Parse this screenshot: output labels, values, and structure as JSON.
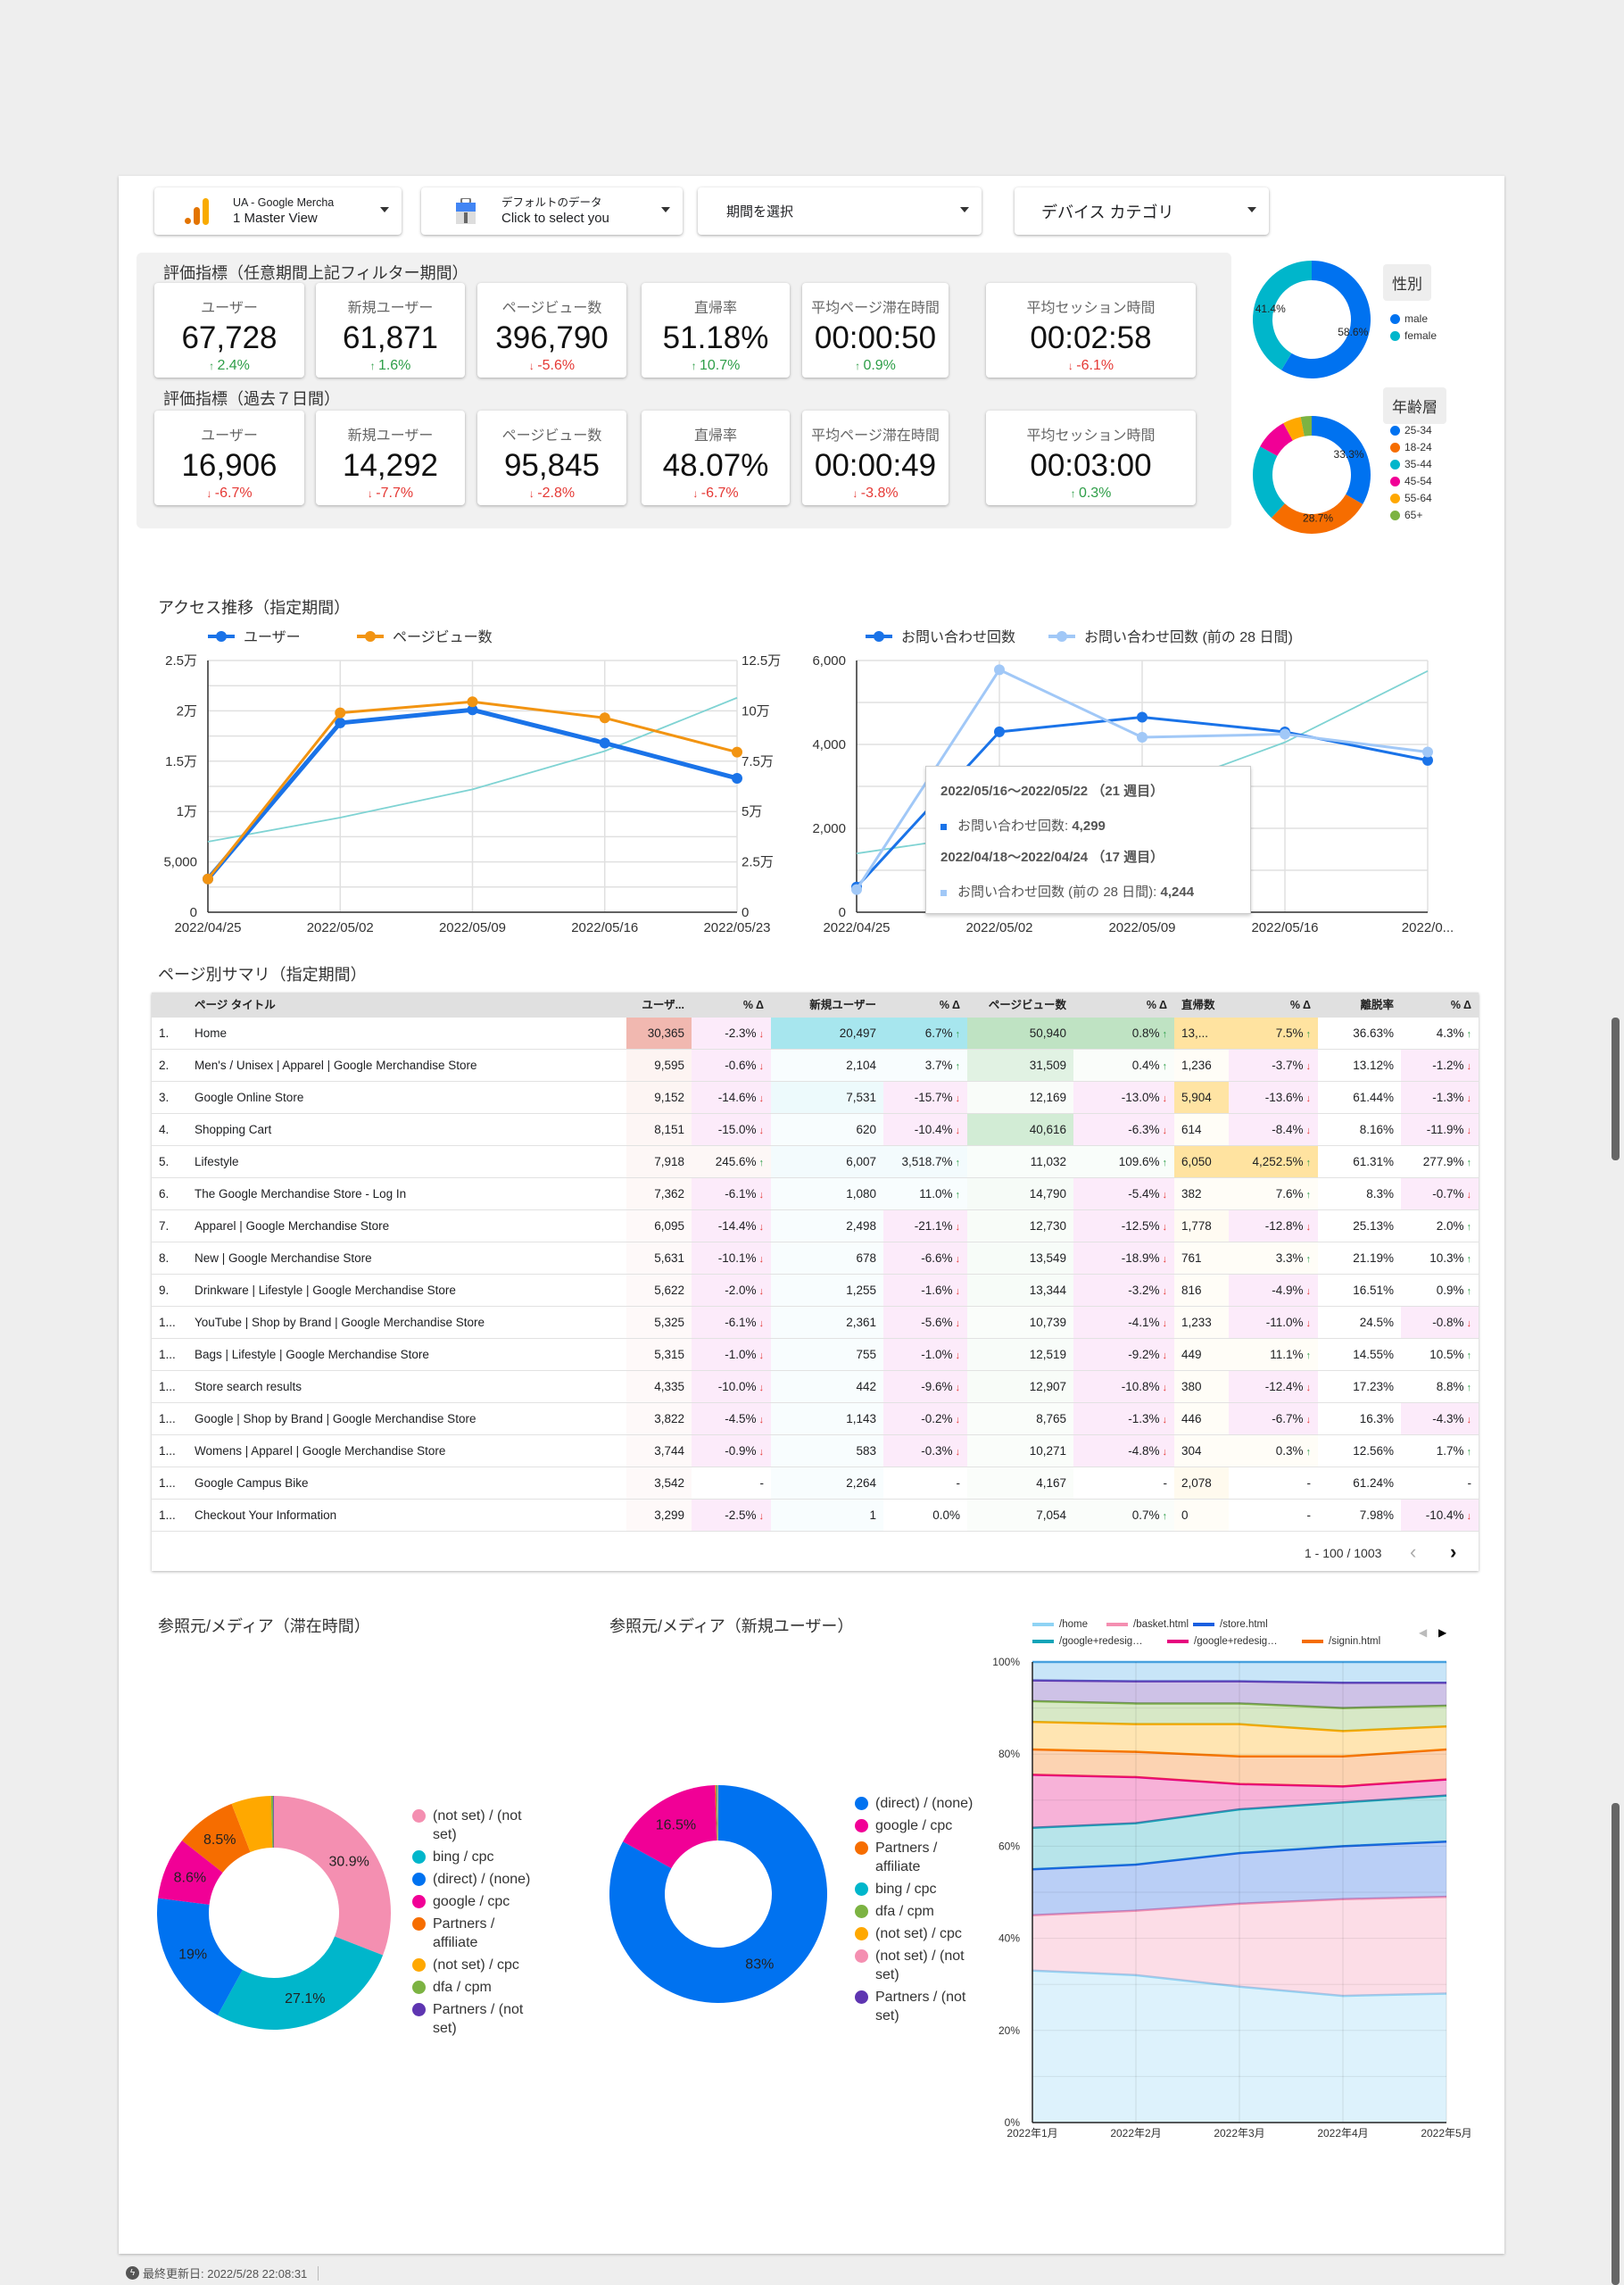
{
  "filters": {
    "account": {
      "line1": "UA - Google Mercha",
      "line2": "1 Master View"
    },
    "datasource": {
      "line1": "デフォルトのデータ",
      "line2": "Click to select you"
    },
    "period": {
      "label": "期間を選択"
    },
    "device": {
      "label": "デバイス カテゴリ"
    }
  },
  "metrics": {
    "section1": {
      "heading": "評価指標（任意期間上記フィルター期間）",
      "cards": [
        {
          "label": "ユーザー",
          "value": "67,728",
          "delta": "2.4%",
          "dir": "up"
        },
        {
          "label": "新規ユーザー",
          "value": "61,871",
          "delta": "1.6%",
          "dir": "up"
        },
        {
          "label": "ページビュー数",
          "value": "396,790",
          "delta": "-5.6%",
          "dir": "down"
        },
        {
          "label": "直帰率",
          "value": "51.18%",
          "delta": "10.7%",
          "dir": "up"
        },
        {
          "label": "平均ページ滞在時間",
          "value": "00:00:50",
          "delta": "0.9%",
          "dir": "up"
        },
        {
          "label": "平均セッション時間",
          "value": "00:02:58",
          "delta": "-6.1%",
          "dir": "down"
        }
      ]
    },
    "section2": {
      "heading": "評価指標（過去７日間）",
      "cards": [
        {
          "label": "ユーザー",
          "value": "16,906",
          "delta": "-6.7%",
          "dir": "down"
        },
        {
          "label": "新規ユーザー",
          "value": "14,292",
          "delta": "-7.7%",
          "dir": "down"
        },
        {
          "label": "ページビュー数",
          "value": "95,845",
          "delta": "-2.8%",
          "dir": "down"
        },
        {
          "label": "直帰率",
          "value": "48.07%",
          "delta": "-6.7%",
          "dir": "down"
        },
        {
          "label": "平均ページ滞在時間",
          "value": "00:00:49",
          "delta": "-3.8%",
          "dir": "down"
        },
        {
          "label": "平均セッション時間",
          "value": "00:03:00",
          "delta": "0.3%",
          "dir": "up"
        }
      ]
    }
  },
  "chart_data": [
    {
      "type": "pie",
      "title": "性別",
      "donut": true,
      "slices": [
        {
          "label": "male",
          "value": 58.6,
          "color": "#0072f0"
        },
        {
          "label": "female",
          "value": 41.4,
          "color": "#00b6cb"
        }
      ],
      "data_labels": [
        "58.6%",
        "41.4%"
      ]
    },
    {
      "type": "pie",
      "title": "年齢層",
      "donut": true,
      "slices": [
        {
          "label": "25-34",
          "value": 33.3,
          "color": "#0072f0"
        },
        {
          "label": "18-24",
          "value": 28.7,
          "color": "#f66d00"
        },
        {
          "label": "35-44",
          "value": 21,
          "color": "#00b6cb"
        },
        {
          "label": "45-54",
          "value": 9,
          "color": "#f10096"
        },
        {
          "label": "55-64",
          "value": 5,
          "color": "#ffa800"
        },
        {
          "label": "65+",
          "value": 3,
          "color": "#7cb342"
        }
      ],
      "data_labels": [
        "33.3%",
        "28.7%",
        "",
        "",
        "",
        ""
      ]
    },
    {
      "type": "line",
      "title": "アクセス推移（指定期間）",
      "categories": [
        "2022/04/25",
        "2022/05/02",
        "2022/05/09",
        "2022/05/16",
        "2022/05/23"
      ],
      "series": [
        {
          "name": "ユーザー",
          "axis": "left",
          "color": "#1a73e8",
          "values": [
            3300,
            18800,
            20100,
            16800,
            13300
          ]
        },
        {
          "name": "ページビュー数",
          "axis": "right",
          "color": "#f29412",
          "values": [
            16500,
            99000,
            104500,
            96500,
            79500
          ]
        }
      ],
      "trendline": {
        "axis": "right",
        "color": "#7fd3d3",
        "values": [
          35000,
          47000,
          61000,
          80000,
          106500
        ]
      },
      "ylim_left": [
        0,
        25000
      ],
      "ylim_right": [
        0,
        125000
      ],
      "yticks_left": [
        "0",
        "5,000",
        "1万",
        "1.5万",
        "2万",
        "2.5万"
      ],
      "yticks_right": [
        "0",
        "2.5万",
        "5万",
        "7.5万",
        "10万",
        "12.5万"
      ],
      "grid": true,
      "legend": "top-left"
    },
    {
      "type": "line",
      "categories": [
        "2022/04/25",
        "2022/05/02",
        "2022/05/09",
        "2022/05/16",
        "2022/0..."
      ],
      "series": [
        {
          "name": "お問い合わせ回数",
          "color": "#1a73e8",
          "values": [
            600,
            4300,
            4650,
            4299,
            3620
          ]
        },
        {
          "name": "お問い合わせ回数 (前の 28 日間)",
          "color": "#a1c8f7",
          "values": [
            540,
            5780,
            4170,
            4244,
            3820
          ]
        }
      ],
      "trendline": {
        "color": "#7fd3d3",
        "values": [
          1400,
          1900,
          2800,
          4050,
          5750
        ]
      },
      "ylim": [
        0,
        6000
      ],
      "yticks": [
        "0",
        "2,000",
        "4,000",
        "6,000"
      ],
      "grid": true,
      "legend": "top-left",
      "tooltip": {
        "range1": "2022/05/16〜2022/05/22 （21 週目）",
        "item1_label": "お問い合わせ回数: ",
        "item1_value": "4,299",
        "range2": "2022/04/18〜2022/04/24 （17 週目）",
        "item2_label": "お問い合わせ回数 (前の 28 日間): ",
        "item2_value": "4,244"
      }
    },
    {
      "type": "pie",
      "title": "参照元/メディア（滞在時間）",
      "donut": true,
      "slices": [
        {
          "label": "(not set) / (not set)",
          "value": 30.9,
          "color": "#f48fb1"
        },
        {
          "label": "bing / cpc",
          "value": 27.1,
          "color": "#00b6cb"
        },
        {
          "label": "(direct) / (none)",
          "value": 19,
          "color": "#0072f0"
        },
        {
          "label": "google / cpc",
          "value": 8.6,
          "color": "#f10096"
        },
        {
          "label": "Partners / affiliate",
          "value": 8.5,
          "color": "#f66d00"
        },
        {
          "label": "(not set) / cpc",
          "value": 5.5,
          "color": "#ffa800"
        },
        {
          "label": "dfa / cpm",
          "value": 0.3,
          "color": "#7cb342"
        },
        {
          "label": "Partners / (not set)",
          "value": 0.1,
          "color": "#5e35b1"
        }
      ],
      "data_labels": [
        "30.9%",
        "27.1%",
        "19%",
        "8.6%",
        "8.5%",
        "",
        "",
        ""
      ]
    },
    {
      "type": "pie",
      "title": "参照元/メディア（新規ユーザー）",
      "donut": true,
      "slices": [
        {
          "label": "(direct) / (none)",
          "value": 83,
          "color": "#0072f0"
        },
        {
          "label": "google / cpc",
          "value": 16.5,
          "color": "#f10096"
        },
        {
          "label": "Partners / affiliate",
          "value": 0.2,
          "color": "#f66d00"
        },
        {
          "label": "bing / cpc",
          "value": 0.1,
          "color": "#00b6cb"
        },
        {
          "label": "dfa / cpm",
          "value": 0.1,
          "color": "#7cb342"
        },
        {
          "label": "(not set) / cpc",
          "value": 0.05,
          "color": "#ffa800"
        },
        {
          "label": "(not set) / (not set)",
          "value": 0.03,
          "color": "#f48fb1"
        },
        {
          "label": "Partners / (not set)",
          "value": 0.02,
          "color": "#5e35b1"
        }
      ],
      "data_labels": [
        "83%",
        "16.5%",
        "",
        "",
        "",
        "",
        "",
        ""
      ]
    },
    {
      "type": "area",
      "stacked": "percent",
      "categories": [
        "2022年1月",
        "2022年2月",
        "2022年3月",
        "2022年4月",
        "2022年5月"
      ],
      "yticks": [
        "0%",
        "20%",
        "40%",
        "60%",
        "80%",
        "100%"
      ],
      "series": [
        {
          "name": "/home",
          "color": "#8fd3f4",
          "values": [
            33,
            32,
            29.5,
            27.5,
            28
          ]
        },
        {
          "name": "/basket.html",
          "color": "#f48fb1",
          "values": [
            12,
            14,
            18,
            21,
            21
          ]
        },
        {
          "name": "/store.html",
          "color": "#1a5fe0",
          "values": [
            10,
            10,
            11,
            11.5,
            12
          ]
        },
        {
          "name": "/google+redesig…",
          "color": "#12a4b8",
          "values": [
            9,
            9,
            9.5,
            9.5,
            10
          ]
        },
        {
          "name": "/google+redesig…",
          "color": "#e6007e",
          "values": [
            11.5,
            10,
            5.5,
            3.5,
            3.5
          ]
        },
        {
          "name": "/signin.html",
          "color": "#f46d00",
          "values": [
            5.5,
            5.5,
            6,
            6.5,
            6.5
          ]
        },
        {
          "color": "#ffa800",
          "values": [
            6,
            6,
            7,
            5.5,
            5
          ]
        },
        {
          "color": "#7cb342",
          "values": [
            4.5,
            4.5,
            4.5,
            5,
            4.5
          ]
        },
        {
          "color": "#5e35b1",
          "values": [
            4.5,
            4.8,
            4.8,
            5.5,
            5
          ]
        },
        {
          "color": "#4aa8e8",
          "values": [
            4,
            4.2,
            4.2,
            4.5,
            4.5
          ]
        }
      ],
      "legend": "top",
      "legend_page_arrows": [
        "◀",
        "▶"
      ]
    }
  ],
  "table": {
    "title": "ページ別サマリ（指定期間）",
    "headers": [
      "",
      "ページ タイトル",
      "ユーザ...",
      "% Δ",
      "新規ユーザー",
      "% Δ",
      "ページビュー数",
      "% Δ",
      "直帰数",
      "% Δ",
      "離脱率",
      "% Δ"
    ],
    "rows": [
      [
        "1.",
        "Home",
        "30,365",
        "-2.3%",
        "20,497",
        "6.7%",
        "50,940",
        "0.8%",
        "13,...",
        "7.5%",
        "36.63%",
        "4.3%"
      ],
      [
        "2.",
        "Men's / Unisex | Apparel | Google Merchandise Store",
        "9,595",
        "-0.6%",
        "2,104",
        "3.7%",
        "31,509",
        "0.4%",
        "1,236",
        "-3.7%",
        "13.12%",
        "-1.2%"
      ],
      [
        "3.",
        "Google Online Store",
        "9,152",
        "-14.6%",
        "7,531",
        "-15.7%",
        "12,169",
        "-13.0%",
        "5,904",
        "-13.6%",
        "61.44%",
        "-1.3%"
      ],
      [
        "4.",
        "Shopping Cart",
        "8,151",
        "-15.0%",
        "620",
        "-10.4%",
        "40,616",
        "-6.3%",
        "614",
        "-8.4%",
        "8.16%",
        "-11.9%"
      ],
      [
        "5.",
        "Lifestyle",
        "7,918",
        "245.6%",
        "6,007",
        "3,518.7%",
        "11,032",
        "109.6%",
        "6,050",
        "4,252.5%",
        "61.31%",
        "277.9%"
      ],
      [
        "6.",
        "The Google Merchandise Store - Log In",
        "7,362",
        "-6.1%",
        "1,080",
        "11.0%",
        "14,790",
        "-5.4%",
        "382",
        "7.6%",
        "8.3%",
        "-0.7%"
      ],
      [
        "7.",
        "Apparel | Google Merchandise Store",
        "6,095",
        "-14.4%",
        "2,498",
        "-21.1%",
        "12,730",
        "-12.5%",
        "1,778",
        "-12.8%",
        "25.13%",
        "2.0%"
      ],
      [
        "8.",
        "New | Google Merchandise Store",
        "5,631",
        "-10.1%",
        "678",
        "-6.6%",
        "13,549",
        "-18.9%",
        "761",
        "3.3%",
        "21.19%",
        "10.3%"
      ],
      [
        "9.",
        "Drinkware | Lifestyle | Google Merchandise Store",
        "5,622",
        "-2.0%",
        "1,255",
        "-1.6%",
        "13,344",
        "-3.2%",
        "816",
        "-4.9%",
        "16.51%",
        "0.9%"
      ],
      [
        "1...",
        "YouTube | Shop by Brand | Google Merchandise Store",
        "5,325",
        "-6.1%",
        "2,361",
        "-5.6%",
        "10,739",
        "-4.1%",
        "1,233",
        "-11.0%",
        "24.5%",
        "-0.8%"
      ],
      [
        "1...",
        "Bags | Lifestyle | Google Merchandise Store",
        "5,315",
        "-1.0%",
        "755",
        "-1.0%",
        "12,519",
        "-9.2%",
        "449",
        "11.1%",
        "14.55%",
        "10.5%"
      ],
      [
        "1...",
        "Store search results",
        "4,335",
        "-10.0%",
        "442",
        "-9.6%",
        "12,907",
        "-10.8%",
        "380",
        "-12.4%",
        "17.23%",
        "8.8%"
      ],
      [
        "1...",
        "Google | Shop by Brand | Google Merchandise Store",
        "3,822",
        "-4.5%",
        "1,143",
        "-0.2%",
        "8,765",
        "-1.3%",
        "446",
        "-6.7%",
        "16.3%",
        "-4.3%"
      ],
      [
        "1...",
        "Womens | Apparel | Google Merchandise Store",
        "3,744",
        "-0.9%",
        "583",
        "-0.3%",
        "10,271",
        "-4.8%",
        "304",
        "0.3%",
        "12.56%",
        "1.7%"
      ],
      [
        "1...",
        "Google Campus Bike",
        "3,542",
        "-",
        "2,264",
        "-",
        "4,167",
        "-",
        "2,078",
        "-",
        "61.24%",
        "-"
      ],
      [
        "1...",
        "Checkout Your Information",
        "3,299",
        "-2.5%",
        "1",
        "0.0%",
        "7,054",
        "0.7%",
        "0",
        "-",
        "7.98%",
        "-10.4%"
      ]
    ],
    "pagination": "1 - 100 / 1003",
    "heat_colors": {
      "users": "#f1b8b0",
      "new_users": "#a7e6ee",
      "pageviews": "#bfe3c3",
      "bounces": "#ffe3a0",
      "negative_delta": "#fcebfa"
    }
  },
  "footer": {
    "last_updated": "最終更新日: 2022/5/28 22:08:31"
  },
  "colors": {
    "up": "#2e9e48",
    "down": "#e53935"
  }
}
